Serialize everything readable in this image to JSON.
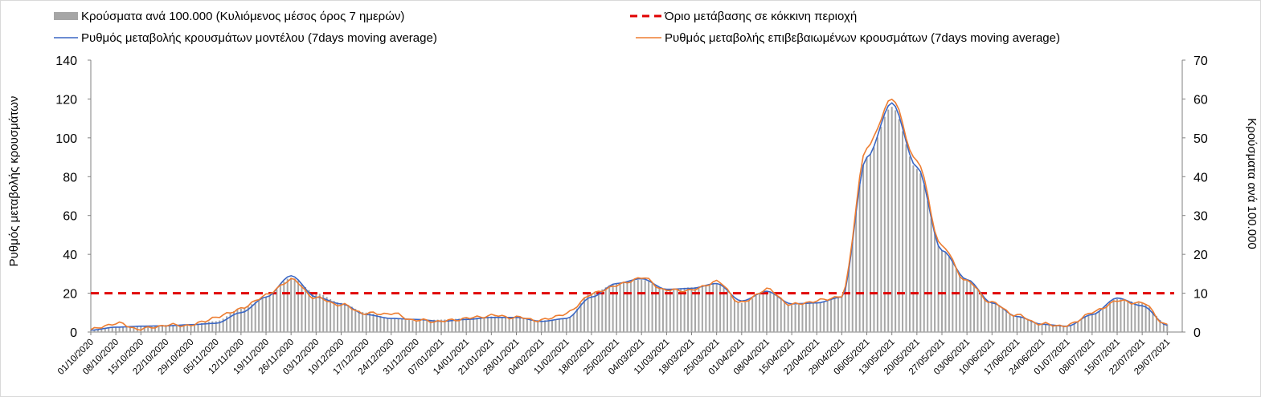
{
  "chart_data": {
    "type": "bar+line",
    "legend": {
      "bars_label": "Κρούσματα ανά 100.000 (Κυλιόμενος μέσος όρος 7 ημερών)",
      "threshold_label": "Όριο μετάβασης σε κόκκινη περιοχή",
      "model_label": "Ρυθμός μεταβολής κρουσμάτων μοντέλου (7days moving average)",
      "confirmed_label": "Ρυθμός μεταβολής επιβεβαιωμένων κρουσμάτων (7days moving average)"
    },
    "ylabel_left": "Ρυθμός μεταβολής κρουσμάτων",
    "ylabel_right": "Κρούσματα ανά 100.000",
    "ylim_left": [
      0,
      140
    ],
    "ylim_right": [
      0,
      70
    ],
    "yticks_left": [
      "0",
      "20",
      "40",
      "60",
      "80",
      "100",
      "120",
      "140"
    ],
    "yticks_right": [
      "0",
      "10",
      "20",
      "30",
      "40",
      "50",
      "60",
      "70"
    ],
    "threshold_left": 20,
    "colors": {
      "bars": "#a6a6a6",
      "threshold": "#e00000",
      "model": "#3a66c4",
      "confirmed": "#ed7d31"
    },
    "x_tick_labels": [
      "01/10/2020",
      "08/10/2020",
      "15/10/2020",
      "22/10/2020",
      "29/10/2020",
      "05/11/2020",
      "12/11/2020",
      "19/11/2020",
      "26/11/2020",
      "03/12/2020",
      "10/12/2020",
      "17/12/2020",
      "24/12/2020",
      "31/12/2020",
      "07/01/2021",
      "14/01/2021",
      "21/01/2021",
      "28/01/2021",
      "04/02/2021",
      "11/02/2021",
      "18/02/2021",
      "25/02/2021",
      "04/03/2021",
      "11/03/2021",
      "18/03/2021",
      "25/03/2021",
      "01/04/2021",
      "08/04/2021",
      "15/04/2021",
      "22/04/2021",
      "29/04/2021",
      "06/05/2021",
      "13/05/2021",
      "20/05/2021",
      "27/05/2021",
      "03/06/2021",
      "10/06/2021",
      "17/06/2021",
      "24/06/2021",
      "01/07/2021",
      "08/07/2021",
      "15/07/2021",
      "22/07/2021",
      "29/07/2021"
    ],
    "weekly_bars_right_axis": [
      0.5,
      1.2,
      1.5,
      1.8,
      2.0,
      2.8,
      6.0,
      9.0,
      14.0,
      10.0,
      7.5,
      5.0,
      3.5,
      3.0,
      3.2,
      3.5,
      4.0,
      3.8,
      3.0,
      3.5,
      10.0,
      12.5,
      13.5,
      11.0,
      11.5,
      12.5,
      7.5,
      10.5,
      7.0,
      7.5,
      9.0,
      45.0,
      58.0,
      42.0,
      21.0,
      13.5,
      7.5,
      4.0,
      2.0,
      1.5,
      4.5,
      8.5,
      7.5,
      2.0
    ],
    "weekly_model_left_axis": [
      1.0,
      2.5,
      3.0,
      3.2,
      3.8,
      4.5,
      10.0,
      18.0,
      29.0,
      18.0,
      14.5,
      9.0,
      7.0,
      6.5,
      5.5,
      6.5,
      7.5,
      7.5,
      5.5,
      7.0,
      18.0,
      25.0,
      27.5,
      22.0,
      22.5,
      25.0,
      16.0,
      21.0,
      14.5,
      15.0,
      18.0,
      90.0,
      118.0,
      85.0,
      42.0,
      27.0,
      15.0,
      8.0,
      4.0,
      3.0,
      9.0,
      17.5,
      13.5,
      3.5
    ],
    "weekly_confirmed_left_axis": [
      1.2,
      4.5,
      1.5,
      3.5,
      3.5,
      7.5,
      12.0,
      19.0,
      27.0,
      17.5,
      14.0,
      9.5,
      9.5,
      6.0,
      5.5,
      7.0,
      8.5,
      7.5,
      6.0,
      9.5,
      19.5,
      24.0,
      28.0,
      21.5,
      21.5,
      26.0,
      15.0,
      22.0,
      14.0,
      16.0,
      18.5,
      95.0,
      120.0,
      88.0,
      44.0,
      26.0,
      15.0,
      8.5,
      4.0,
      3.2,
      10.0,
      16.0,
      15.0,
      3.5
    ]
  }
}
